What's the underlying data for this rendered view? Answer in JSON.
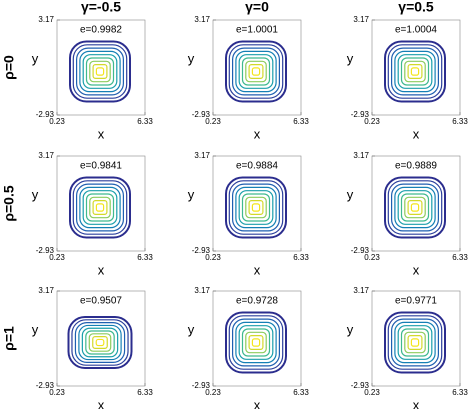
{
  "column_titles": [
    "γ=-0.5",
    "γ=0",
    "γ=0.5"
  ],
  "row_titles": [
    "ρ=0",
    "ρ=0.5",
    "ρ=1"
  ],
  "chart_data": [
    {
      "type": "contour",
      "annotation": "e=0.9982",
      "xlabel": "x",
      "ylabel": "y",
      "xlim": [
        0.23,
        6.33
      ],
      "ylim": [
        -2.93,
        3.17
      ],
      "xticks": [
        0.23,
        6.33
      ],
      "yticks": [
        -2.93,
        3.17
      ]
    },
    {
      "type": "contour",
      "annotation": "e=1.0001",
      "xlabel": "x",
      "ylabel": "y",
      "xlim": [
        0.23,
        6.33
      ],
      "ylim": [
        -2.93,
        3.17
      ],
      "xticks": [
        0.23,
        6.33
      ],
      "yticks": [
        -2.93,
        3.17
      ]
    },
    {
      "type": "contour",
      "annotation": "e=1.0004",
      "xlabel": "x",
      "ylabel": "y",
      "xlim": [
        0.23,
        6.33
      ],
      "ylim": [
        -2.93,
        3.17
      ],
      "xticks": [
        0.23,
        6.33
      ],
      "yticks": [
        -2.93,
        3.17
      ]
    },
    {
      "type": "contour",
      "annotation": "e=0.9841",
      "xlabel": "x",
      "ylabel": "y",
      "xlim": [
        0.23,
        6.33
      ],
      "ylim": [
        -2.93,
        3.17
      ],
      "xticks": [
        0.23,
        6.33
      ],
      "yticks": [
        -2.93,
        3.17
      ]
    },
    {
      "type": "contour",
      "annotation": "e=0.9884",
      "xlabel": "x",
      "ylabel": "y",
      "xlim": [
        0.23,
        6.33
      ],
      "ylim": [
        -2.93,
        3.17
      ],
      "xticks": [
        0.23,
        6.33
      ],
      "yticks": [
        -2.93,
        3.17
      ]
    },
    {
      "type": "contour",
      "annotation": "e=0.9889",
      "xlabel": "x",
      "ylabel": "y",
      "xlim": [
        0.23,
        6.33
      ],
      "ylim": [
        -2.93,
        3.17
      ],
      "xticks": [
        0.23,
        6.33
      ],
      "yticks": [
        -2.93,
        3.17
      ]
    },
    {
      "type": "contour",
      "annotation": "e=0.9507",
      "xlabel": "x",
      "ylabel": "y",
      "xlim": [
        0.23,
        6.33
      ],
      "ylim": [
        -2.93,
        3.17
      ],
      "xticks": [
        0.23,
        6.33
      ],
      "yticks": [
        -2.93,
        3.17
      ]
    },
    {
      "type": "contour",
      "annotation": "e=0.9728",
      "xlabel": "x",
      "ylabel": "y",
      "xlim": [
        0.23,
        6.33
      ],
      "ylim": [
        -2.93,
        3.17
      ],
      "xticks": [
        0.23,
        6.33
      ],
      "yticks": [
        -2.93,
        3.17
      ]
    },
    {
      "type": "contour",
      "annotation": "e=0.9771",
      "xlabel": "x",
      "ylabel": "y",
      "xlim": [
        0.23,
        6.33
      ],
      "ylim": [
        -2.93,
        3.17
      ],
      "xticks": [
        0.23,
        6.33
      ],
      "yticks": [
        -2.93,
        3.17
      ]
    }
  ]
}
